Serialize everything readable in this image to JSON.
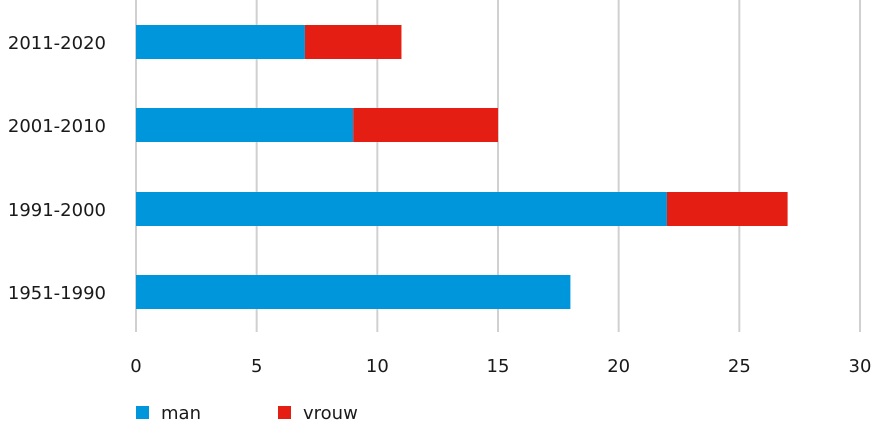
{
  "chart_data": {
    "type": "bar",
    "orientation": "horizontal",
    "stacked": true,
    "title": "",
    "xlabel": "",
    "ylabel": "",
    "categories": [
      "2011-2020",
      "2001-2010",
      "1991-2000",
      "1951-1990"
    ],
    "series": [
      {
        "name": "man",
        "color": "#0096dc",
        "values": [
          7,
          9,
          22,
          18
        ]
      },
      {
        "name": "vrouw",
        "color": "#e51e14",
        "values": [
          4,
          6,
          5,
          0
        ]
      }
    ],
    "xlim": [
      0,
      30
    ],
    "xticks": [
      "0",
      "5",
      "10",
      "15",
      "20",
      "25",
      "30"
    ],
    "grid": true,
    "legend_position": "bottom-left"
  }
}
